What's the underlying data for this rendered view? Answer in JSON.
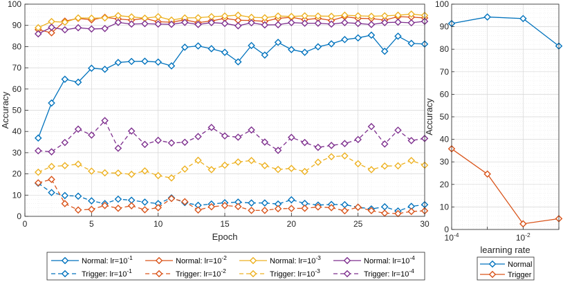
{
  "chart_data": [
    {
      "type": "line",
      "title": "",
      "xlabel": "Epoch",
      "ylabel": "Accuracy",
      "xlim": [
        0,
        30
      ],
      "ylim": [
        0,
        100
      ],
      "xticks": [
        0,
        5,
        10,
        15,
        20,
        25,
        30
      ],
      "yticks": [
        0,
        10,
        20,
        30,
        40,
        50,
        60,
        70,
        80,
        90,
        100
      ],
      "grid": true,
      "legend_position": "bottom",
      "x": [
        1,
        2,
        3,
        4,
        5,
        6,
        7,
        8,
        9,
        10,
        11,
        12,
        13,
        14,
        15,
        16,
        17,
        18,
        19,
        20,
        21,
        22,
        23,
        24,
        25,
        26,
        27,
        28,
        29,
        30
      ],
      "series": [
        {
          "name": "Normal: lr=10^-1",
          "legend_prefix": "Normal: lr=10",
          "legend_exp": "-1",
          "color": "#0072BD",
          "dashed": false,
          "values": [
            36.9,
            53.4,
            64.6,
            63.2,
            69.8,
            69.3,
            72.5,
            73.0,
            73.1,
            72.7,
            70.9,
            79.7,
            80.3,
            79.0,
            77.3,
            72.8,
            80.5,
            76.0,
            82.0,
            78.6,
            77.3,
            79.9,
            81.3,
            83.3,
            84.1,
            85.4,
            77.8,
            84.9,
            81.5,
            81.2
          ]
        },
        {
          "name": "Normal: lr=10^-2",
          "legend_prefix": "Normal: lr=10",
          "legend_exp": "-2",
          "color": "#D95319",
          "dashed": false,
          "values": [
            88.0,
            86.5,
            92.0,
            93.3,
            92.6,
            93.8,
            93.0,
            92.5,
            93.3,
            91.7,
            91.5,
            92.6,
            91.3,
            92.1,
            93.3,
            92.4,
            92.3,
            91.9,
            93.3,
            93.8,
            92.7,
            93.3,
            92.3,
            94.1,
            93.3,
            93.2,
            92.5,
            94.1,
            93.9,
            93.5
          ]
        },
        {
          "name": "Normal: lr=10^-3",
          "legend_prefix": "Normal: lr=10",
          "legend_exp": "-3",
          "color": "#EDB120",
          "dashed": false,
          "values": [
            88.9,
            91.8,
            91.5,
            93.5,
            93.4,
            93.5,
            94.6,
            94.0,
            93.4,
            94.1,
            92.5,
            93.5,
            93.6,
            94.1,
            94.4,
            94.8,
            93.8,
            93.6,
            94.4,
            94.2,
            94.5,
            94.4,
            94.3,
            94.8,
            94.5,
            94.3,
            94.5,
            94.8,
            95.3,
            94.7
          ]
        },
        {
          "name": "Normal: lr=10^-4",
          "legend_prefix": "Normal: lr=10",
          "legend_exp": "-4",
          "color": "#7E2F8E",
          "dashed": false,
          "values": [
            86.0,
            89.1,
            87.9,
            88.9,
            88.3,
            88.5,
            91.4,
            90.6,
            90.8,
            90.6,
            90.5,
            91.4,
            90.4,
            91.3,
            90.9,
            89.8,
            91.2,
            90.2,
            90.3,
            91.3,
            91.0,
            91.0,
            90.6,
            91.3,
            90.9,
            90.4,
            91.3,
            91.5,
            91.2,
            91.9
          ]
        },
        {
          "name": "Trigger: lr=10^-1",
          "legend_prefix": "Trigger: lr=10",
          "legend_exp": "-1",
          "color": "#0072BD",
          "dashed": true,
          "values": [
            15.6,
            11.2,
            9.8,
            9.5,
            7.3,
            6.0,
            8.1,
            7.6,
            6.7,
            6.0,
            8.7,
            6.5,
            5.2,
            5.8,
            6.4,
            6.7,
            6.3,
            6.3,
            5.8,
            7.8,
            6.1,
            5.3,
            5.6,
            5.5,
            4.3,
            3.5,
            4.5,
            2.5,
            4.7,
            5.5
          ]
        },
        {
          "name": "Trigger: lr=10^-2",
          "legend_prefix": "Trigger: lr=10",
          "legend_exp": "-2",
          "color": "#D95319",
          "dashed": true,
          "values": [
            15.8,
            17.4,
            6.0,
            3.0,
            3.3,
            5.1,
            3.8,
            5.0,
            3.1,
            4.1,
            8.4,
            6.9,
            3.0,
            4.5,
            5.1,
            4.6,
            2.8,
            2.8,
            3.6,
            3.7,
            3.8,
            4.4,
            4.1,
            2.6,
            4.3,
            2.7,
            1.5,
            1.3,
            2.3,
            2.6
          ]
        },
        {
          "name": "Trigger: lr=10^-3",
          "legend_prefix": "Trigger: lr=10",
          "legend_exp": "-3",
          "color": "#EDB120",
          "dashed": true,
          "values": [
            20.8,
            23.5,
            23.9,
            24.6,
            21.3,
            20.5,
            20.4,
            19.8,
            21.4,
            19.2,
            18.1,
            22.3,
            26.4,
            22.0,
            24.1,
            25.6,
            26.3,
            23.9,
            22.1,
            22.6,
            21.1,
            25.5,
            28.1,
            28.5,
            24.8,
            22.0,
            23.7,
            23.8,
            26.3,
            24.1
          ]
        },
        {
          "name": "Trigger: lr=10^-4",
          "legend_prefix": "Trigger: lr=10",
          "legend_exp": "-4",
          "color": "#7E2F8E",
          "dashed": true,
          "values": [
            30.9,
            30.4,
            34.8,
            41.1,
            38.3,
            45.1,
            32.1,
            40.2,
            33.9,
            35.8,
            34.6,
            34.9,
            37.6,
            41.9,
            37.9,
            37.3,
            40.7,
            35.0,
            31.1,
            37.2,
            34.8,
            32.5,
            33.4,
            34.3,
            36.2,
            42.3,
            34.1,
            40.6,
            35.7,
            36.7
          ]
        }
      ]
    },
    {
      "type": "line",
      "title": "",
      "xlabel": "learning rate",
      "ylabel": "Accuracy",
      "xscale": "log",
      "xlim_exp": [
        -4,
        -1
      ],
      "ylim": [
        0,
        100
      ],
      "yticks": [
        0,
        10,
        20,
        30,
        40,
        50,
        60,
        70,
        80,
        90,
        100
      ],
      "xticks": [
        {
          "exp": -4,
          "base": "10",
          "sup": "-4"
        },
        {
          "exp": -2,
          "base": "10",
          "sup": "-2"
        }
      ],
      "grid": true,
      "legend_position": "bottom",
      "x": [
        0.0001,
        0.001,
        0.01,
        0.1
      ],
      "series": [
        {
          "name": "Normal",
          "color": "#0072BD",
          "values": [
            91.4,
            94.3,
            93.6,
            81.4
          ]
        },
        {
          "name": "Trigger",
          "color": "#D95319",
          "values": [
            35.8,
            24.6,
            2.5,
            4.8
          ]
        }
      ]
    }
  ]
}
